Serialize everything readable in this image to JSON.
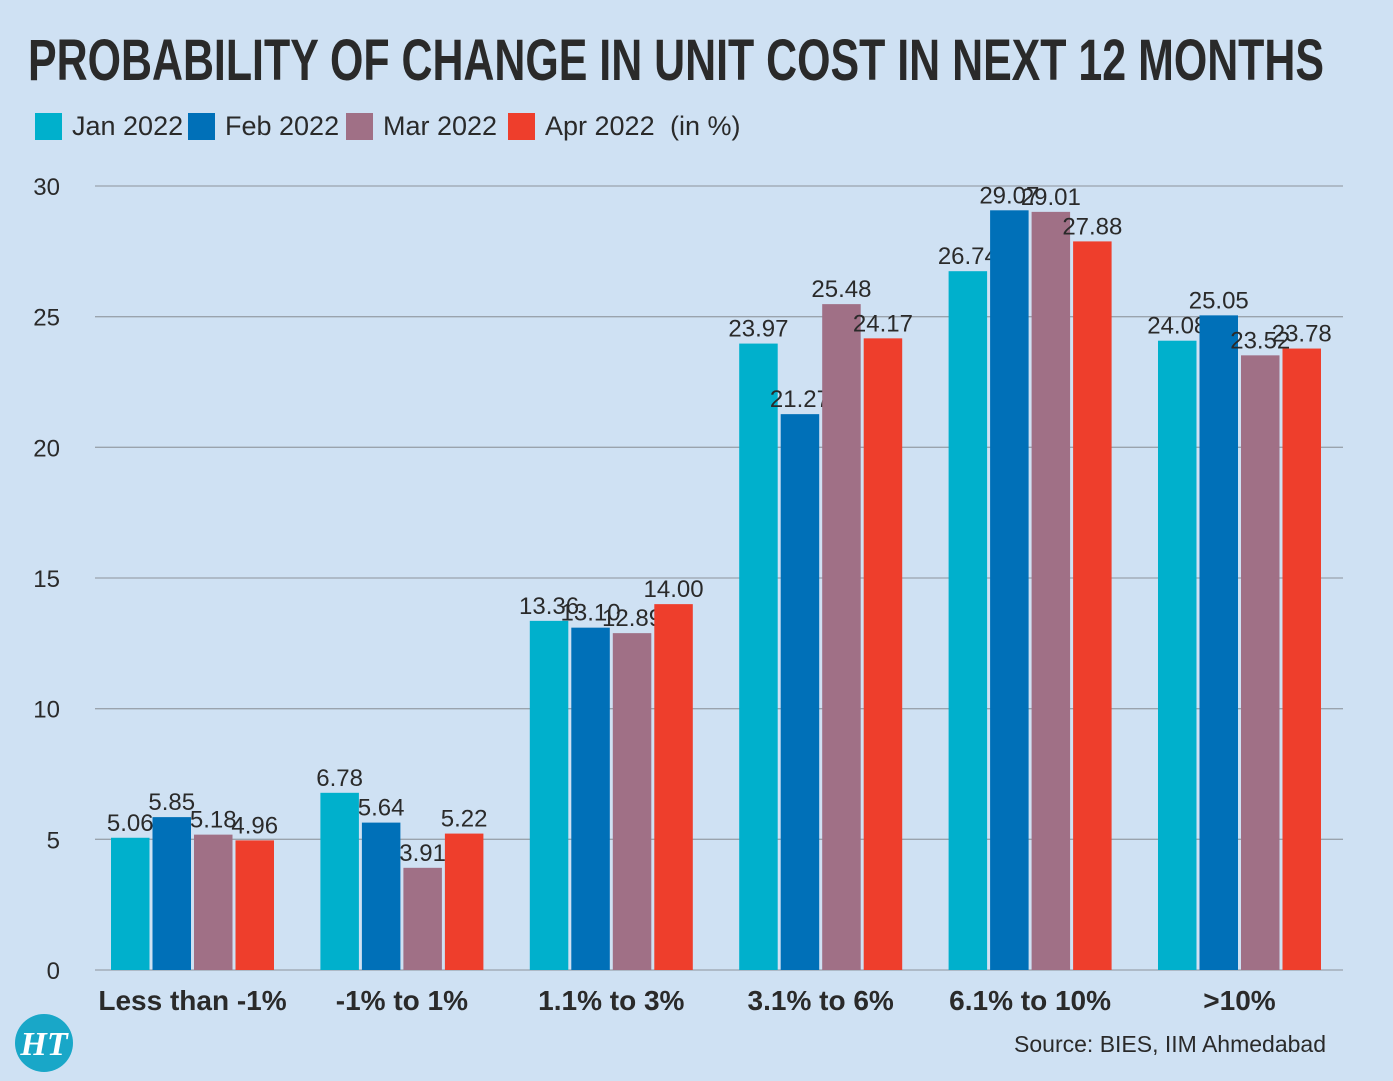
{
  "chart_data": {
    "type": "bar",
    "title": "PROBABILITY OF CHANGE IN UNIT COST IN NEXT 12 MONTHS",
    "unit_note": "(in %)",
    "categories": [
      "Less than -1%",
      "-1% to 1%",
      "1.1% to 3%",
      "3.1% to 6%",
      "6.1% to 10%",
      ">10%"
    ],
    "series": [
      {
        "name": "Jan 2022",
        "color": "#00b0cc",
        "values": [
          5.06,
          6.78,
          13.36,
          23.97,
          26.74,
          24.08
        ],
        "labels": [
          "5.06",
          "6.78",
          "13.36",
          "23.97",
          "26.74",
          "24.08"
        ]
      },
      {
        "name": "Feb 2022",
        "color": "#0070b8",
        "values": [
          5.85,
          5.64,
          13.1,
          21.27,
          29.07,
          25.05
        ],
        "labels": [
          "5.85",
          "5.64",
          "13.10",
          "21.27",
          "29.07",
          "25.05"
        ]
      },
      {
        "name": "Mar 2022",
        "color": "#a07086",
        "values": [
          5.18,
          3.91,
          12.89,
          25.48,
          29.01,
          23.52
        ],
        "labels": [
          "5.18",
          "3.91",
          "12.89",
          "25.48",
          "29.01",
          "23.52"
        ]
      },
      {
        "name": "Apr 2022",
        "color": "#ee3e2c",
        "values": [
          4.96,
          5.22,
          14.0,
          24.17,
          27.88,
          23.78
        ],
        "labels": [
          "4.96",
          "5.22",
          "14.00",
          "24.17",
          "27.88",
          "23.78"
        ]
      }
    ],
    "ylim": [
      0,
      30
    ],
    "yticks": [
      "0",
      "5",
      "10",
      "15",
      "20",
      "25",
      "30"
    ],
    "grid": true,
    "legend_position": "top-left"
  },
  "source": "Source: BIES, IIM Ahmedabad",
  "logo": "HT"
}
